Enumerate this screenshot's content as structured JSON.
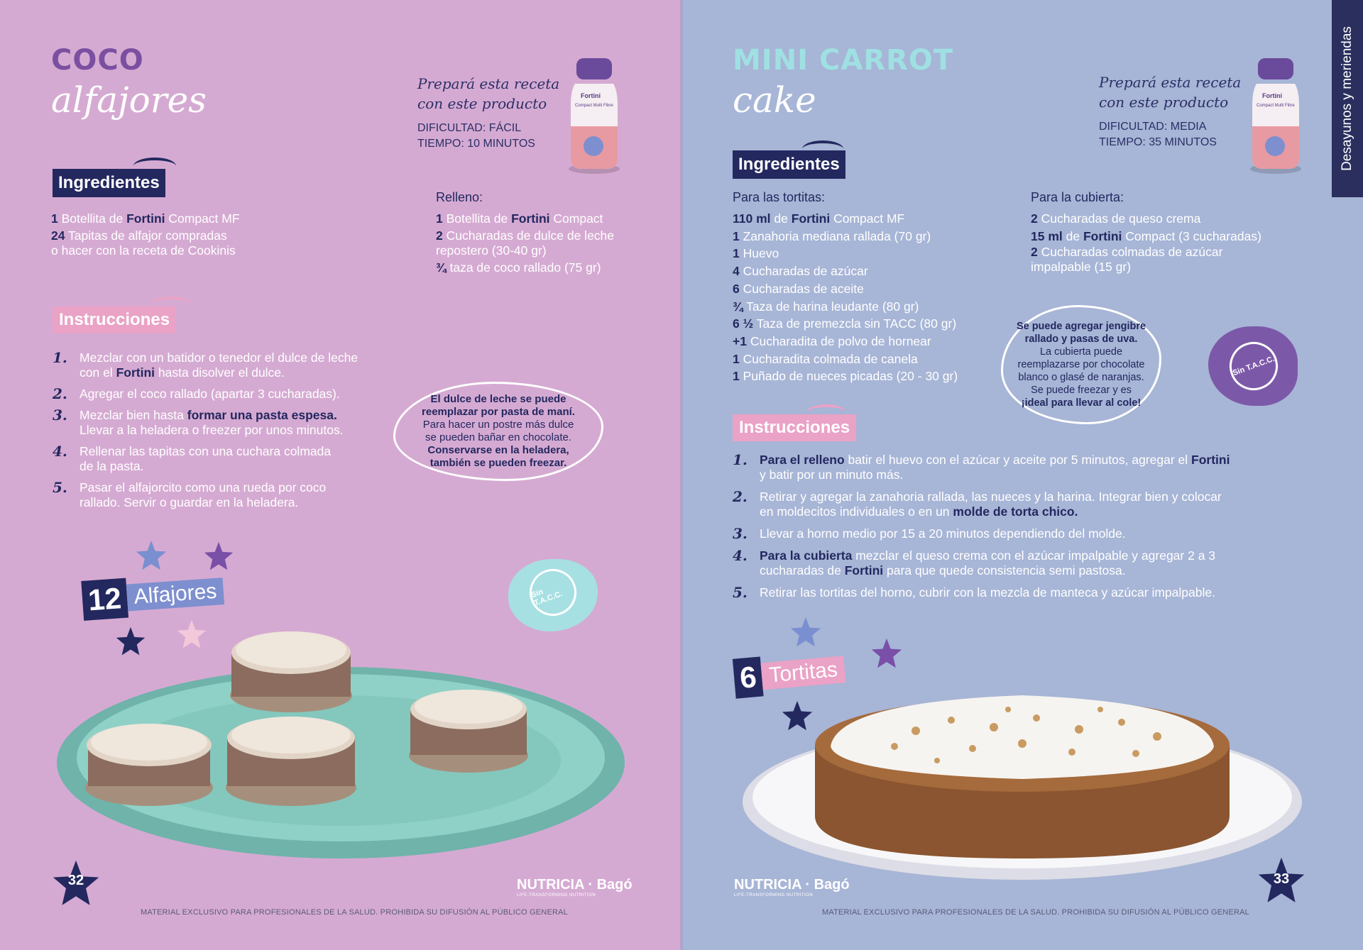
{
  "sidebar": {
    "label": "Desayunos y meriendas"
  },
  "left": {
    "title_line1": "COCO",
    "title_line2": "alfajores",
    "prep_line1": "Prepará esta receta",
    "prep_line2": "con este producto",
    "difficulty": "DIFICULTAD: FÁCIL",
    "time": "TIEMPO: 10 MINUTOS",
    "ingredients_heading": "Ingredientes",
    "ingredients": [
      {
        "num": "1",
        "pre": "Botellita de",
        "brand": "Fortini",
        "post": "Compact MF"
      },
      {
        "num": "24",
        "pre": "Tapitas de alfajor compradas",
        "line2": "o hacer con la receta de Cookinis"
      }
    ],
    "relleno_heading": "Relleno:",
    "relleno": [
      {
        "num": "1",
        "pre": "Botellita de",
        "brand": "Fortini",
        "post": "Compact"
      },
      {
        "num": "2",
        "pre": "Cucharadas de dulce de leche",
        "line2": "repostero (30-40 gr)"
      },
      {
        "num": "¾",
        "pre": "taza de coco rallado (75 gr)"
      }
    ],
    "instructions_heading": "Instrucciones",
    "steps": [
      {
        "n": "1.",
        "a": "Mezclar con un batidor o tenedor el dulce de leche",
        "b1": "con el",
        "brand": "Fortini",
        "b2": "hasta disolver el dulce."
      },
      {
        "n": "2.",
        "a": "Agregar el coco rallado (apartar 3 cucharadas)."
      },
      {
        "n": "3.",
        "a": "Mezclar bien hasta",
        "bold": "formar una pasta espesa.",
        "line2": "Llevar a la heladera o freezer por unos minutos."
      },
      {
        "n": "4.",
        "a": "Rellenar las tapitas con una cuchara colmada",
        "line2": "de la pasta."
      },
      {
        "n": "5.",
        "a": "Pasar el alfajorcito como una rueda por coco",
        "line2": "rallado. Servir o guardar en la heladera."
      }
    ],
    "note": {
      "l1": "El dulce de leche se puede",
      "l2": "reemplazar por pasta de maní.",
      "l3": "Para hacer un postre más dulce",
      "l4": "se pueden bañar en chocolate.",
      "l5": "Conservarse en la heladera,",
      "l6": "también se pueden freezar."
    },
    "yield_num": "12",
    "yield_label": "Alfajores",
    "badge": "Sin T.A.C.C.",
    "page_num": "32",
    "logo1": "NUTRICIA",
    "logo_sep": "·",
    "logo2": "Bagó",
    "logo_tag": "LIFE-TRANSFORMING NUTRITION",
    "footer": "MATERIAL EXCLUSIVO PARA PROFESIONALES DE LA SALUD. PROHIBIDA SU DIFUSIÓN AL PÚBLICO GENERAL",
    "bottle_brand": "Fortini",
    "bottle_line": "Compact Multi Fibre"
  },
  "right": {
    "title_line1": "MINI CARROT",
    "title_line2": "cake",
    "prep_line1": "Prepará esta receta",
    "prep_line2": "con este producto",
    "difficulty": "DIFICULTAD: MEDIA",
    "time": "TIEMPO: 35 MINUTOS",
    "ingredients_heading": "Ingredientes",
    "tortitas_heading": "Para las tortitas:",
    "tortitas": [
      {
        "num": "110 ml",
        "pre": "de",
        "brand": "Fortini",
        "post": "Compact MF"
      },
      {
        "num": "1",
        "pre": "Zanahoria mediana rallada (70 gr)"
      },
      {
        "num": "1",
        "pre": "Huevo"
      },
      {
        "num": "4",
        "pre": "Cucharadas de azúcar"
      },
      {
        "num": "6",
        "pre": "Cucharadas de aceite"
      },
      {
        "num": "¾",
        "pre": "Taza de harina leudante (80 gr)"
      },
      {
        "num": "6 ½",
        "pre": "Taza de premezcla sin TACC (80 gr)"
      },
      {
        "num": "+1",
        "pre": "Cucharadita de polvo de hornear"
      },
      {
        "num": "1",
        "pre": "Cucharadita colmada de canela"
      },
      {
        "num": "1",
        "pre": "Puñado de nueces picadas (20 - 30 gr)"
      }
    ],
    "cubierta_heading": "Para la cubierta:",
    "cubierta": [
      {
        "num": "2",
        "pre": "Cucharadas de queso crema"
      },
      {
        "num": "15 ml",
        "pre": "de",
        "brand": "Fortini",
        "post": "Compact (3 cucharadas)"
      },
      {
        "num": "2",
        "pre": " Cucharadas colmadas de azúcar",
        "line2": "impalpable (15 gr)"
      }
    ],
    "note": {
      "l1": "Se puede agregar jengibre",
      "l2": "rallado y pasas de uva.",
      "l3": "La cubierta puede",
      "l4": "reemplazarse por chocolate",
      "l5": "blanco o glasé de naranjas.",
      "l6": "Se puede freezar y es",
      "l7": "¡ideal para llevar al cole!"
    },
    "badge": "Sin T.A.C.C.",
    "instructions_heading": "Instrucciones",
    "steps": [
      {
        "n": "1.",
        "bold": "Para el relleno",
        "a": "batir el huevo con el azúcar y aceite por 5 minutos, agregar el",
        "brand": "Fortini",
        "line2": "y batir por un minuto más."
      },
      {
        "n": "2.",
        "a": "Retirar y agregar la zanahoria rallada, las nueces y la harina. Integrar bien y colocar",
        "line2a": "en moldecitos individuales o en un",
        "bold2": "molde de torta chico."
      },
      {
        "n": "3.",
        "a": "Llevar a horno medio por 15 a 20 minutos dependiendo del molde."
      },
      {
        "n": "4.",
        "bold": "Para la cubierta",
        "a": "mezclar el queso crema con el azúcar impalpable y agregar 2 a 3",
        "line2a": "cucharadas de",
        "brand": "Fortini",
        "line2b": "para que quede consistencia semi pastosa."
      },
      {
        "n": "5.",
        "a": "Retirar las tortitas del horno, cubrir con la mezcla de manteca  y azúcar impalpable."
      }
    ],
    "yield_num": "6",
    "yield_label": "Tortitas",
    "page_num": "33",
    "logo1": "NUTRICIA",
    "logo_sep": "·",
    "logo2": "Bagó",
    "logo_tag": "LIFE-TRANSFORMING NUTRITION",
    "footer": "MATERIAL EXCLUSIVO PARA PROFESIONALES DE LA SALUD. PROHIBIDA SU DIFUSIÓN AL PÚBLICO GENERAL",
    "bottle_brand": "Fortini",
    "bottle_line": "Compact Multi Fibre"
  },
  "colors": {
    "left_bg": "#d5aad2",
    "right_bg": "#a7b5d6",
    "navy": "#23285f",
    "left_title": "#7b4fa0",
    "right_title": "#9fe0e2",
    "pink_tag": "#eaa2c6"
  }
}
